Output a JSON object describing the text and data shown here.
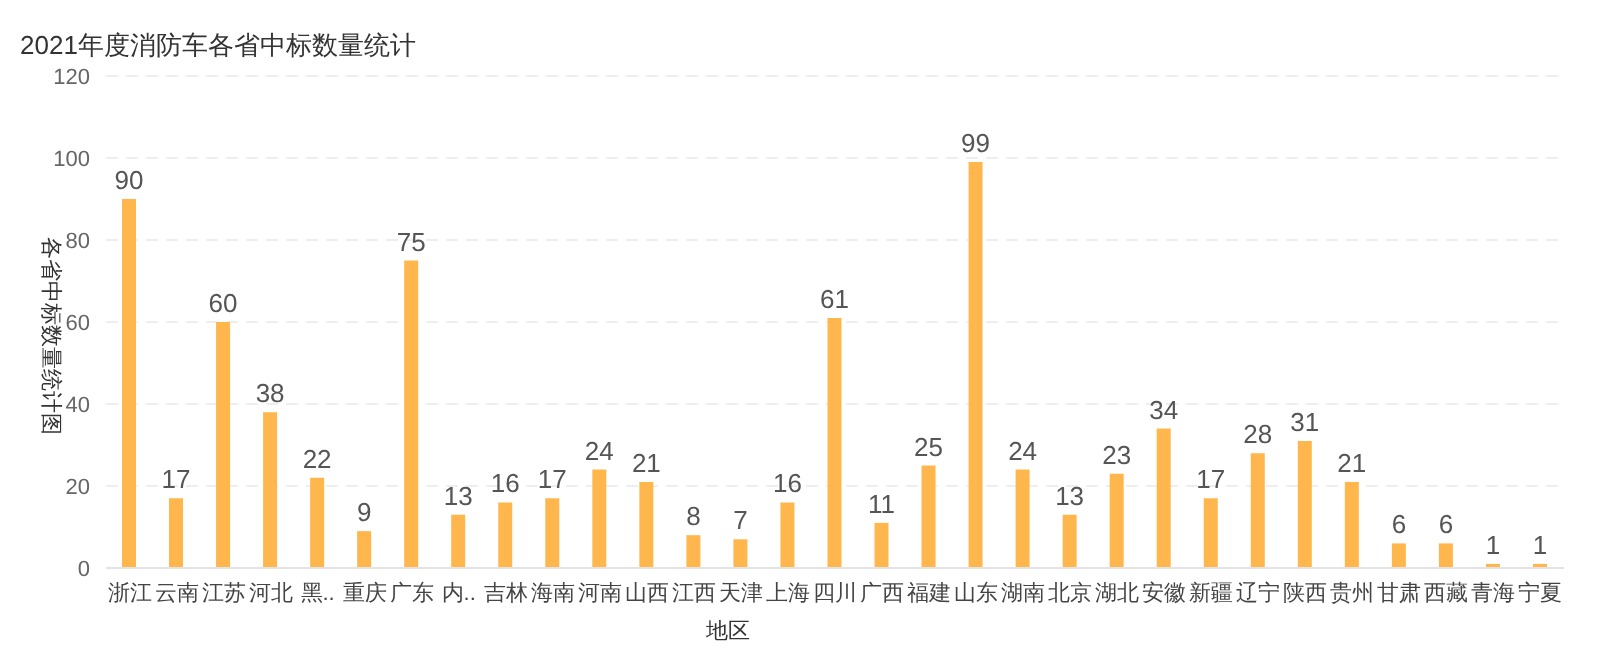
{
  "chart_data": {
    "type": "bar",
    "title": "2021年度消防车各省中标数量统计",
    "xlabel": "地区",
    "ylabel": "各省中标数量统计图",
    "categories": [
      "浙江",
      "云南",
      "江苏",
      "河北",
      "黑..",
      "重庆",
      "广东",
      "内..",
      "吉林",
      "海南",
      "河南",
      "山西",
      "江西",
      "天津",
      "上海",
      "四川",
      "广西",
      "福建",
      "山东",
      "湖南",
      "北京",
      "湖北",
      "安徽",
      "新疆",
      "辽宁",
      "陕西",
      "贵州",
      "甘肃",
      "西藏",
      "青海",
      "宁夏"
    ],
    "values": [
      90,
      17,
      60,
      38,
      22,
      9,
      75,
      13,
      16,
      17,
      24,
      21,
      8,
      7,
      16,
      61,
      11,
      25,
      99,
      24,
      13,
      23,
      34,
      17,
      28,
      31,
      21,
      6,
      6,
      1,
      1
    ],
    "color": "#ffb74d",
    "ylim": [
      0,
      120
    ],
    "yticks": [
      0,
      20,
      40,
      60,
      80,
      100,
      120
    ],
    "grid": "y",
    "data_labels": true
  }
}
